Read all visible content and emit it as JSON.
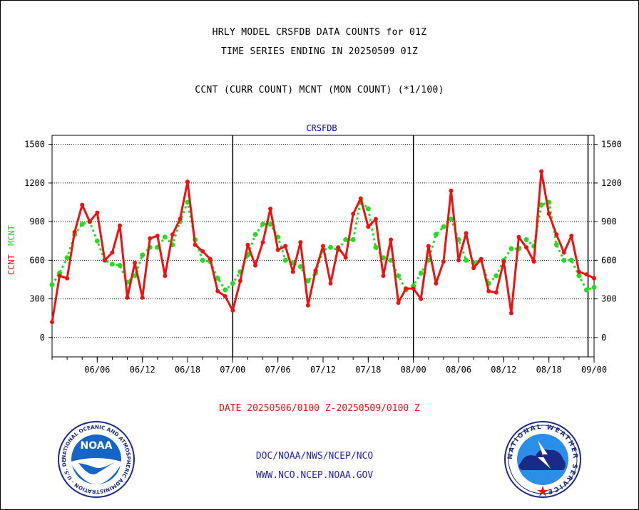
{
  "header": {
    "line1": "HRLY MODEL CRSFDB DATA COUNTS for 01Z",
    "line2": "TIME SERIES ENDING IN 20250509 01Z",
    "line3": "CCNT (CURR COUNT) MCNT (MON COUNT) (*1/100)"
  },
  "footer": {
    "date_range": "DATE 20250506/0100 Z-20250509/0100 Z",
    "org": "DOC/NOAA/NWS/NCEP/NCO",
    "url": "WWW.NCO.NCEP.NOAA.GOV"
  },
  "logos": {
    "noaa_text": "NOAA",
    "noaa_ring": "NATIONAL OCEANIC AND ATMOSPHERIC ADMINISTRATION · U.S. DEPARTMENT OF COMMERCE ·",
    "nws_ring": "NATIONAL WEATHER SERVICE"
  },
  "chart_data": {
    "type": "line",
    "title": "CRSFDB",
    "ylabel_ccnt": "CCNT",
    "ylabel_mcnt": "MCNT",
    "yticks": [
      0,
      300,
      600,
      900,
      1200,
      1500
    ],
    "ylim": [
      -150,
      1570
    ],
    "xlim": [
      0,
      72
    ],
    "xticks": [
      {
        "x": 6,
        "label": "06/06"
      },
      {
        "x": 12,
        "label": "06/12"
      },
      {
        "x": 18,
        "label": "06/18"
      },
      {
        "x": 24,
        "label": "07/00"
      },
      {
        "x": 30,
        "label": "07/06"
      },
      {
        "x": 36,
        "label": "07/12"
      },
      {
        "x": 42,
        "label": "07/18"
      },
      {
        "x": 48,
        "label": "08/00"
      },
      {
        "x": 54,
        "label": "08/06"
      },
      {
        "x": 60,
        "label": "08/12"
      },
      {
        "x": 66,
        "label": "08/18"
      },
      {
        "x": 72,
        "label": "09/00"
      }
    ],
    "day_lines": [
      24,
      48,
      71.2
    ],
    "grid": true,
    "colors": {
      "ccnt": "#ee1111",
      "mcnt": "#22dd22",
      "title": "#0000cc",
      "date": "#ee1111",
      "footer": "#2222bb"
    },
    "series": [
      {
        "name": "CCNT",
        "values": [
          120,
          480,
          460,
          820,
          1030,
          900,
          970,
          600,
          660,
          870,
          310,
          580,
          310,
          770,
          790,
          480,
          800,
          920,
          1210,
          720,
          670,
          610,
          360,
          320,
          210,
          440,
          720,
          560,
          740,
          1000,
          680,
          710,
          510,
          740,
          250,
          520,
          710,
          420,
          700,
          620,
          960,
          1080,
          860,
          920,
          480,
          760,
          270,
          380,
          380,
          300,
          710,
          420,
          590,
          1140,
          600,
          810,
          540,
          610,
          360,
          350,
          590,
          190,
          780,
          700,
          590,
          1290,
          960,
          800,
          660,
          790,
          510,
          490,
          460
        ]
      },
      {
        "name": "MCNT",
        "values": [
          410,
          500,
          620,
          800,
          880,
          900,
          750,
          600,
          570,
          560,
          430,
          480,
          640,
          700,
          700,
          780,
          720,
          900,
          1050,
          760,
          600,
          590,
          460,
          370,
          420,
          510,
          640,
          800,
          880,
          880,
          780,
          600,
          580,
          550,
          440,
          500,
          680,
          700,
          680,
          760,
          760,
          1060,
          1000,
          700,
          620,
          600,
          480,
          370,
          400,
          500,
          600,
          800,
          860,
          920,
          760,
          600,
          580,
          600,
          420,
          480,
          600,
          690,
          690,
          760,
          710,
          1030,
          1050,
          720,
          600,
          600,
          480,
          370,
          390
        ]
      }
    ]
  }
}
